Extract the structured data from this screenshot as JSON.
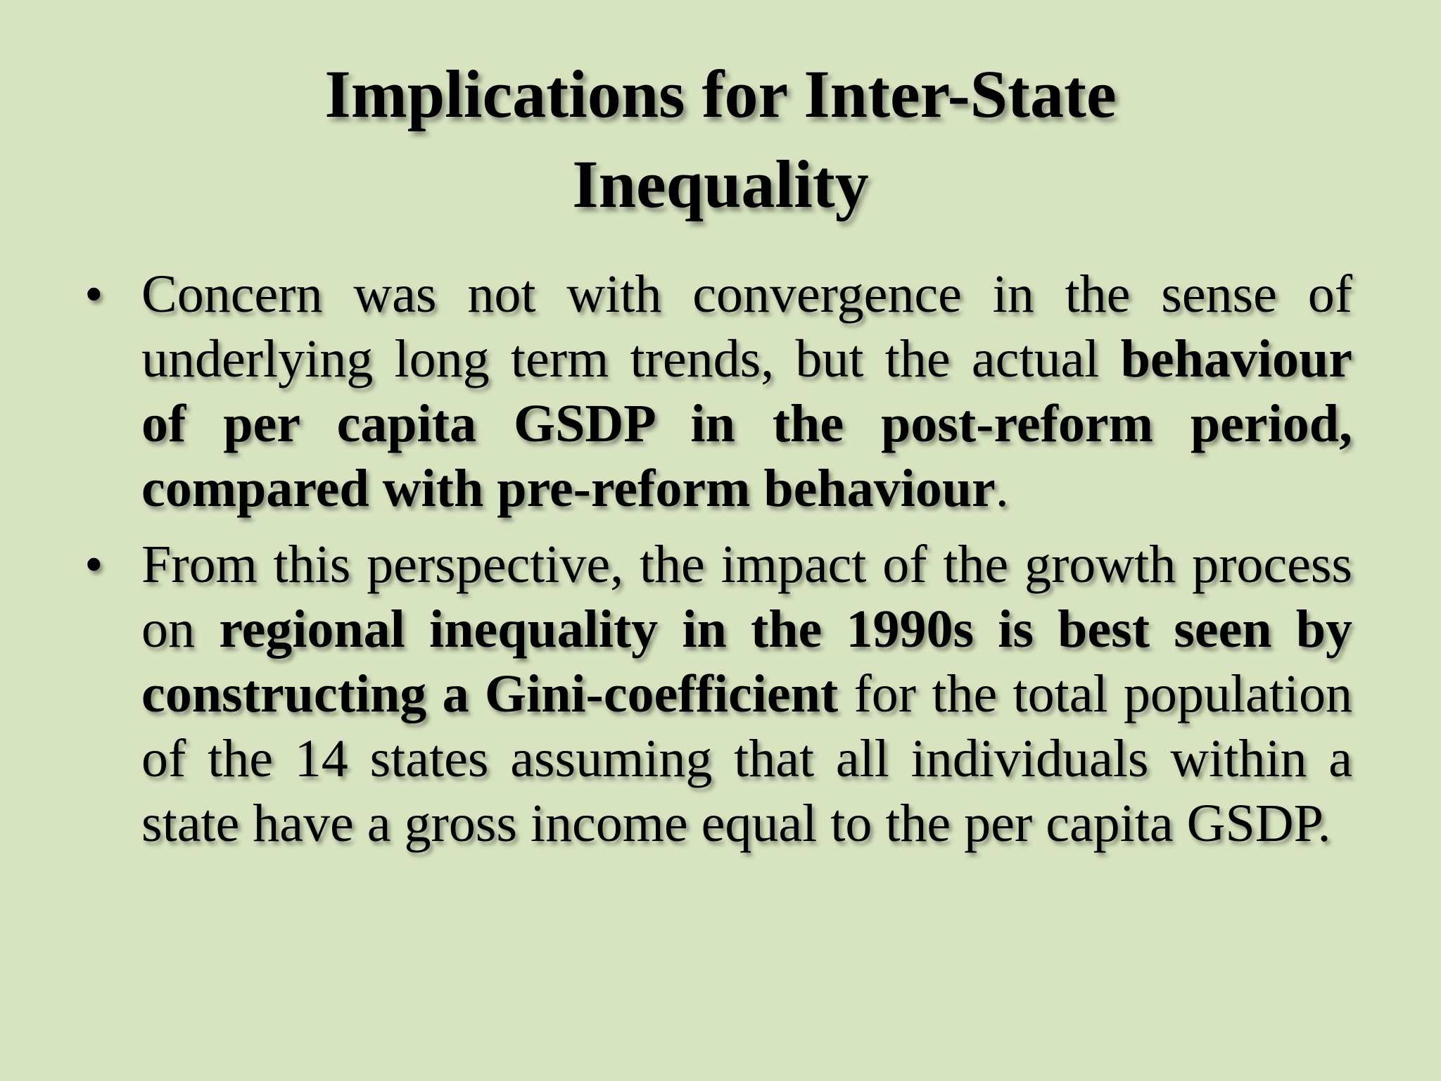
{
  "slide": {
    "title_line1": "Implications for Inter-State",
    "title_line2": "Inequality",
    "bullet_symbol": "•",
    "bullets": [
      {
        "part1": "Concern was  not with convergence in the sense of underlying long term trends, but the actual ",
        "bold1": "behaviour of per capita GSDP in the post-reform period, compared with pre-reform behaviour",
        "part2": "."
      },
      {
        "part1": "From this perspective, the impact of the growth process on ",
        "bold1": "regional inequality in the 1990s is best seen by constructing a Gini-coefficient",
        "part2": " for the total population of the 14 states assuming that all individuals within a state have a gross income equal to the per capita GSDP."
      }
    ]
  },
  "colors": {
    "background": "#d8e4c0",
    "text": "#000000"
  }
}
